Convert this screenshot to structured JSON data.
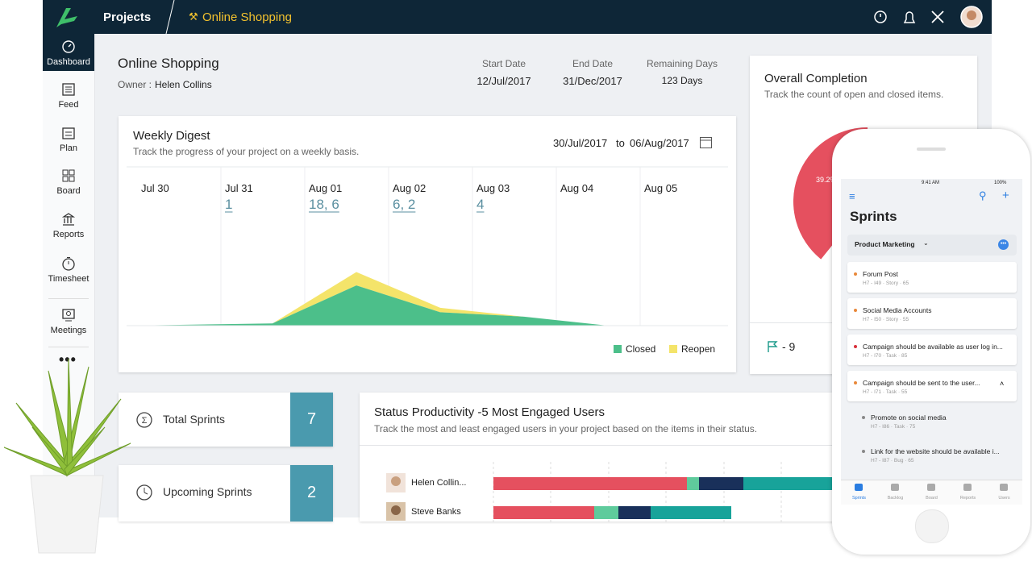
{
  "topbar": {
    "section": "Projects",
    "project": "Online Shopping"
  },
  "sidebar": {
    "items": [
      "Dashboard",
      "Feed",
      "Plan",
      "Board",
      "Reports",
      "Timesheet",
      "Meetings"
    ]
  },
  "project": {
    "title": "Online Shopping",
    "owner_label": "Owner :",
    "owner": "Helen Collins",
    "start_label": "Start Date",
    "start": "12/Jul/2017",
    "end_label": "End Date",
    "end": "31/Dec/2017",
    "remaining_label": "Remaining Days",
    "remaining": "123 Days"
  },
  "digest": {
    "title": "Weekly Digest",
    "subtitle": "Track the progress of your project on a weekly basis.",
    "range_from": "30/Jul/2017",
    "range_sep": "to",
    "range_to": "06/Aug/2017",
    "days": [
      "Jul 30",
      "Jul 31",
      "Aug 01",
      "Aug 02",
      "Aug 03",
      "Aug 04",
      "Aug 05"
    ],
    "counts": [
      null,
      "1",
      "18, 6",
      "6, 2",
      "4",
      null,
      null
    ],
    "ylim": [
      0,
      70
    ],
    "series": [
      {
        "name": "Closed",
        "color": "#4cbf8a",
        "values": [
          0,
          1,
          18,
          6,
          4,
          0,
          0
        ]
      },
      {
        "name": "Reopen",
        "color": "#f4e46a",
        "values": [
          0,
          0,
          6,
          2,
          0,
          0,
          0
        ]
      }
    ]
  },
  "stats": [
    {
      "label": "Total Sprints",
      "value": "7"
    },
    {
      "label": "Upcoming Sprints",
      "value": "2"
    }
  ],
  "status": {
    "title": "Status Productivity -5 Most Engaged Users",
    "subtitle": "Track the most and least engaged users in your project based on the items in their status.",
    "colors": [
      "#e5505f",
      "#5fcb9c",
      "#19305a",
      "#18a39a"
    ],
    "users": [
      {
        "name": "Helen Collin...",
        "values": [
          48,
          3,
          11,
          22
        ]
      },
      {
        "name": "Steve Banks",
        "values": [
          25,
          6,
          8,
          20
        ]
      }
    ]
  },
  "completion": {
    "title": "Overall Completion",
    "subtitle": "Track the count of open and closed items.",
    "pie": {
      "value": 39.2,
      "label": "39.2%"
    },
    "flag_count": "- 9"
  },
  "phone": {
    "time": "9:41 AM",
    "battery": "100%",
    "title": "Sprints",
    "filter": "Product Marketing",
    "items": [
      {
        "title": "Forum Post",
        "id": "H7 - I49",
        "kind": "Story",
        "points": "65",
        "dot": "#e8883a"
      },
      {
        "title": "Social Media Accounts",
        "id": "H7 - I50",
        "kind": "Story",
        "points": "55",
        "dot": "#e8883a"
      },
      {
        "title": "Campaign should be available as user log in...",
        "id": "H7 - I70",
        "kind": "Task",
        "points": "85",
        "dot": "#d8303a"
      },
      {
        "title": "Campaign should be sent to the user...",
        "id": "H7 - I71",
        "kind": "Task",
        "points": "55",
        "dot": "#e8883a"
      },
      {
        "title": "Promote on social media",
        "id": "H7 - I86",
        "kind": "Task",
        "points": "75",
        "dot": "#888"
      },
      {
        "title": "Link for the website should be available i...",
        "id": "H7 - I87",
        "kind": "Bug",
        "points": "65",
        "dot": "#888"
      }
    ],
    "tabs": [
      "Sprints",
      "Backlog",
      "Board",
      "Reports",
      "Users"
    ]
  }
}
